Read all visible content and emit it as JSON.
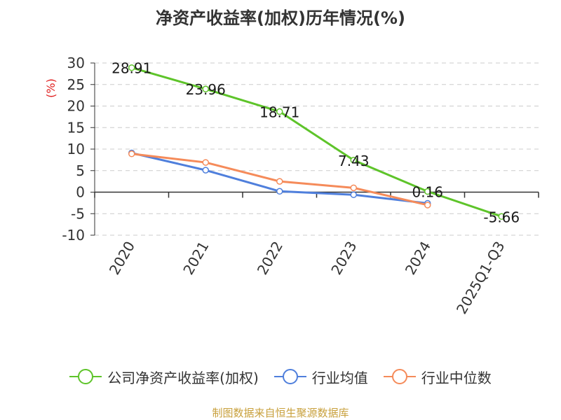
{
  "chart_data": {
    "type": "line",
    "title": "净资产收益率(加权)历年情况(%)",
    "ylabel": "(%)",
    "xlabel": "",
    "categories": [
      "2020",
      "2021",
      "2022",
      "2023",
      "2024",
      "2025Q1-Q3"
    ],
    "ylim": [
      -10,
      30
    ],
    "yticks": [
      30,
      25,
      20,
      15,
      10,
      5,
      0,
      -5,
      -10
    ],
    "grid": true,
    "legend_position": "bottom",
    "series": [
      {
        "name": "公司净资产收益率(加权)",
        "color": "#5ec42a",
        "values": [
          28.91,
          23.96,
          18.71,
          7.43,
          0.16,
          -5.66
        ],
        "labels": [
          "28.91",
          "23.96",
          "18.71",
          "7.43",
          "0.16",
          "-5.66"
        ]
      },
      {
        "name": "行业均值",
        "color": "#4f7fdc",
        "values": [
          9.1,
          5.1,
          0.2,
          -0.6,
          -2.6,
          null
        ]
      },
      {
        "name": "行业中位数",
        "color": "#f58b5a",
        "values": [
          8.9,
          6.9,
          2.5,
          1.0,
          -3.0,
          null
        ]
      }
    ]
  },
  "footer": {
    "source": "制图数据来自恒生聚源数据库"
  }
}
